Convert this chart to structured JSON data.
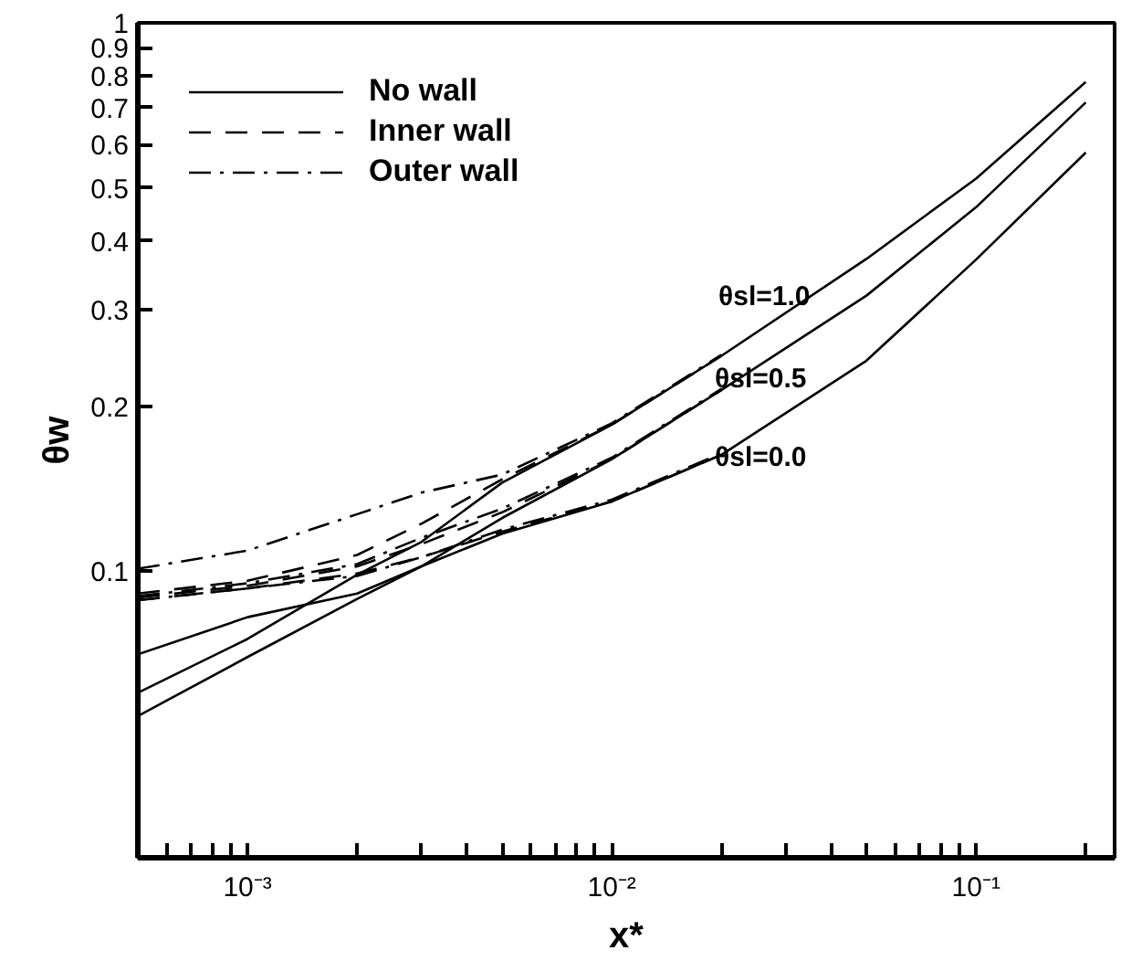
{
  "chart_data": {
    "type": "line",
    "xlabel": "x*",
    "ylabel": "θw",
    "log": "xy",
    "xlim": [
      0.0005,
      0.24
    ],
    "ylim": [
      0.03,
      1
    ],
    "xticks": [
      {
        "value": 0.0006,
        "label": null
      },
      {
        "value": 0.0007,
        "label": null
      },
      {
        "value": 0.0008,
        "label": null
      },
      {
        "value": 0.0009,
        "label": null
      },
      {
        "value": 0.001,
        "label": "10⁻³"
      },
      {
        "value": 0.002,
        "label": null
      },
      {
        "value": 0.003,
        "label": null
      },
      {
        "value": 0.004,
        "label": null
      },
      {
        "value": 0.005,
        "label": null
      },
      {
        "value": 0.006,
        "label": null
      },
      {
        "value": 0.007,
        "label": null
      },
      {
        "value": 0.008,
        "label": null
      },
      {
        "value": 0.009,
        "label": null
      },
      {
        "value": 0.01,
        "label": "10⁻²"
      },
      {
        "value": 0.02,
        "label": null
      },
      {
        "value": 0.03,
        "label": null
      },
      {
        "value": 0.04,
        "label": null
      },
      {
        "value": 0.05,
        "label": null
      },
      {
        "value": 0.06,
        "label": null
      },
      {
        "value": 0.07,
        "label": null
      },
      {
        "value": 0.08,
        "label": null
      },
      {
        "value": 0.09,
        "label": null
      },
      {
        "value": 0.1,
        "label": "10⁻¹"
      },
      {
        "value": 0.2,
        "label": null
      }
    ],
    "yticks": [
      0.1,
      0.2,
      0.3,
      0.4,
      0.5,
      0.6,
      0.7,
      0.8,
      0.9,
      1
    ],
    "grid": false,
    "legend": "top left",
    "tick_labels": true,
    "x": [
      0.0005,
      0.001,
      0.002,
      0.003,
      0.005,
      0.01,
      0.02,
      0.05,
      0.1,
      0.2
    ],
    "series": [
      {
        "name": "No wall",
        "color": "#000000",
        "line_style": "solid",
        "values": [
          0.06,
          0.0752,
          0.0985,
          0.113,
          0.145,
          0.185,
          0.247,
          0.371,
          0.52,
          0.78
        ]
      },
      {
        "color": "#000000",
        "line_style": "solid",
        "values": [
          0.0544,
          0.0697,
          0.089,
          0.102,
          0.125,
          0.16,
          0.214,
          0.318,
          0.461,
          0.716
        ]
      },
      {
        "color": "#000000",
        "line_style": "solid",
        "values": [
          0.0705,
          0.0824,
          0.091,
          0.102,
          0.117,
          0.134,
          0.163,
          0.242,
          0.37,
          0.58
        ]
      },
      {
        "name": "Inner wall",
        "color": "#000000",
        "line_style": "dashed",
        "values": [
          0.091,
          0.096,
          0.107,
          0.122,
          0.147,
          0.185,
          0.247,
          null,
          null,
          null
        ]
      },
      {
        "color": "#000000",
        "line_style": "dashed",
        "values": [
          0.0895,
          0.094,
          0.102,
          0.112,
          0.128,
          0.16,
          0.214,
          null,
          null,
          null
        ]
      },
      {
        "color": "#000000",
        "line_style": "dashed",
        "values": [
          0.0885,
          0.093,
          0.099,
          0.106,
          0.118,
          0.134,
          0.163,
          null,
          null,
          null
        ]
      },
      {
        "name": "Outer wall",
        "color": "#000000",
        "line_style": "dashdot",
        "values": [
          0.101,
          0.109,
          0.127,
          0.139,
          0.15,
          0.186,
          0.248,
          null,
          null,
          null
        ]
      },
      {
        "color": "#000000",
        "line_style": "dashdot",
        "values": [
          0.09,
          0.095,
          0.103,
          0.115,
          0.13,
          0.161,
          0.215,
          null,
          null,
          null
        ]
      },
      {
        "color": "#000000",
        "line_style": "dashdot",
        "values": [
          0.0885,
          0.093,
          0.098,
          0.106,
          0.119,
          0.135,
          0.164,
          null,
          null,
          null
        ]
      }
    ],
    "annotations": [
      "θsl=1.0",
      "θsl=0.5",
      "θsl=0.0"
    ]
  }
}
